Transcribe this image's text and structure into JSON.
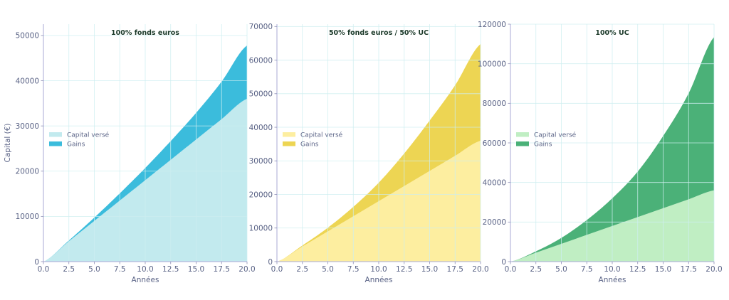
{
  "chart_data": [
    {
      "type": "area",
      "stacked": true,
      "title": "100% fonds euros",
      "xlabel": "Années",
      "ylabel": "Capital (€)",
      "xlim": [
        0,
        20
      ],
      "ylim": [
        0,
        52500
      ],
      "xticks": [
        "0.0",
        "2.5",
        "5.0",
        "7.5",
        "10.0",
        "12.5",
        "15.0",
        "17.5",
        "20.0"
      ],
      "yticks": [
        "0",
        "10000",
        "20000",
        "30000",
        "40000",
        "50000"
      ],
      "legend": "center-left",
      "grid": true,
      "x": [
        0,
        2.5,
        5,
        7.5,
        10,
        12.5,
        15,
        17.5,
        20
      ],
      "series": [
        {
          "name": "Capital versé",
          "color": "#c2eaee",
          "values": [
            0,
            4500,
            9000,
            13500,
            18000,
            22500,
            27000,
            31500,
            36000
          ]
        },
        {
          "name": "Gains",
          "color": "#3bbcdc",
          "values": [
            0,
            180,
            740,
            1600,
            2700,
            4150,
            5900,
            8300,
            11800
          ]
        }
      ]
    },
    {
      "type": "area",
      "stacked": true,
      "title": "50% fonds euros / 50% UC",
      "xlabel": "Années",
      "ylabel": "",
      "xlim": [
        0,
        20
      ],
      "ylim": [
        0,
        70700
      ],
      "xticks": [
        "0.0",
        "2.5",
        "5.0",
        "7.5",
        "10.0",
        "12.5",
        "15.0",
        "17.5",
        "20.0"
      ],
      "yticks": [
        "0",
        "10000",
        "20000",
        "30000",
        "40000",
        "50000",
        "60000",
        "70000"
      ],
      "legend": "center-left",
      "grid": true,
      "x": [
        0,
        2.5,
        5,
        7.5,
        10,
        12.5,
        15,
        17.5,
        20
      ],
      "series": [
        {
          "name": "Capital versé",
          "color": "#fdeea0",
          "values": [
            0,
            4500,
            9000,
            13500,
            18000,
            22500,
            27000,
            31500,
            36000
          ]
        },
        {
          "name": "Gains",
          "color": "#edd553",
          "values": [
            0,
            300,
            1100,
            2800,
            5500,
            9700,
            15000,
            21000,
            28800
          ]
        }
      ]
    },
    {
      "type": "area",
      "stacked": true,
      "title": "100% UC",
      "xlabel": "Années",
      "ylabel": "",
      "xlim": [
        0,
        20
      ],
      "ylim": [
        0,
        120000
      ],
      "xticks": [
        "0.0",
        "2.5",
        "5.0",
        "7.5",
        "10.0",
        "12.5",
        "15.0",
        "17.5",
        "20.0"
      ],
      "yticks": [
        "0",
        "20000",
        "40000",
        "60000",
        "80000",
        "100000",
        "120000"
      ],
      "legend": "center-left",
      "grid": true,
      "x": [
        0,
        2.5,
        5,
        7.5,
        10,
        12.5,
        15,
        17.5,
        20
      ],
      "series": [
        {
          "name": "Capital versé",
          "color": "#c0eec3",
          "values": [
            0,
            4500,
            9000,
            13500,
            18000,
            22500,
            27000,
            31500,
            36000
          ]
        },
        {
          "name": "Gains",
          "color": "#4bb178",
          "values": [
            0,
            700,
            3000,
            7500,
            14000,
            23000,
            36500,
            53500,
            77500
          ]
        }
      ]
    }
  ]
}
